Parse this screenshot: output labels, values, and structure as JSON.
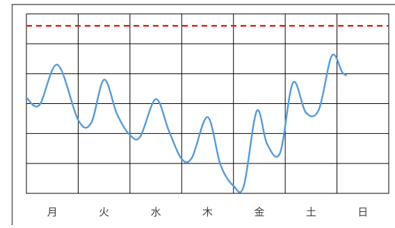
{
  "chart_data": {
    "type": "line",
    "title": "",
    "xlabel": "",
    "ylabel": "",
    "categories": [
      "月",
      "火",
      "水",
      "木",
      "金",
      "土",
      "日"
    ],
    "x_range": [
      0,
      14
    ],
    "y_range": [
      0,
      6
    ],
    "grid": {
      "vertical_lines": 7,
      "horizontal_lines": 6
    },
    "reference_line": {
      "value": 5.6,
      "color": "#e02020",
      "style": "dashed"
    },
    "series": [
      {
        "color": "#5b9bd5",
        "points": [
          [
            0.0,
            3.2
          ],
          [
            0.5,
            2.95
          ],
          [
            1.2,
            4.3
          ],
          [
            2.0,
            2.45
          ],
          [
            2.5,
            2.35
          ],
          [
            3.0,
            3.8
          ],
          [
            3.5,
            2.65
          ],
          [
            4.0,
            1.95
          ],
          [
            4.4,
            1.9
          ],
          [
            5.0,
            3.15
          ],
          [
            5.5,
            2.1
          ],
          [
            6.0,
            1.15
          ],
          [
            6.4,
            1.2
          ],
          [
            7.0,
            2.55
          ],
          [
            7.5,
            0.95
          ],
          [
            8.0,
            0.25
          ],
          [
            8.4,
            0.25
          ],
          [
            8.9,
            2.75
          ],
          [
            9.3,
            1.65
          ],
          [
            9.8,
            1.35
          ],
          [
            10.3,
            3.7
          ],
          [
            10.8,
            2.7
          ],
          [
            11.3,
            2.8
          ],
          [
            11.8,
            4.6
          ],
          [
            12.2,
            4.05
          ],
          [
            12.35,
            3.95
          ]
        ]
      }
    ]
  }
}
